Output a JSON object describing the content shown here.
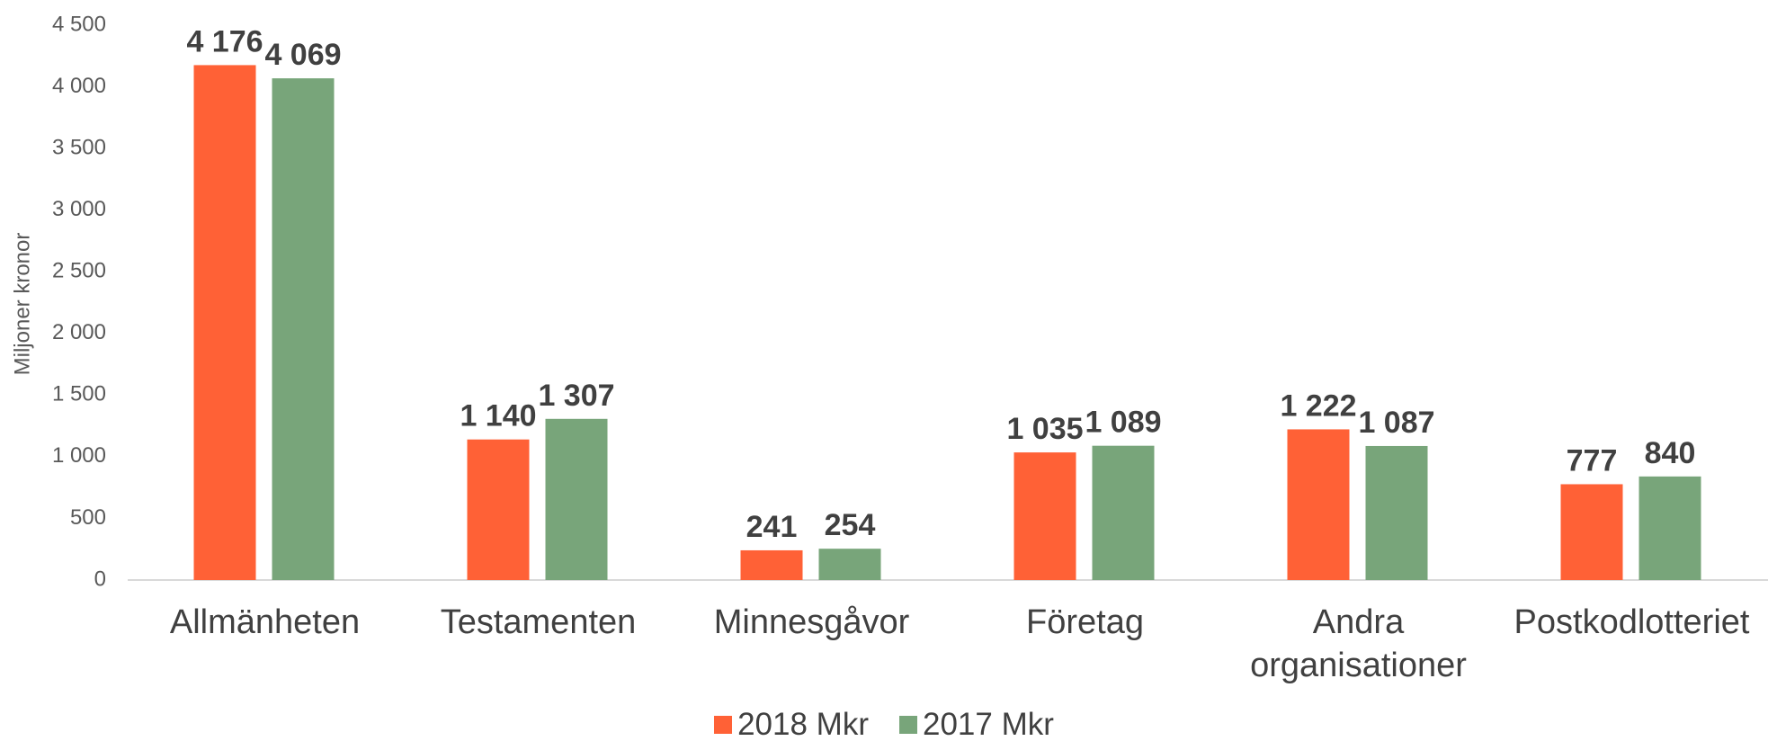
{
  "chart_data": {
    "type": "bar",
    "y_label": "Miljoner kronor",
    "categories": [
      "Allmänheten",
      "Testamenten",
      "Minnesgåvor",
      "Företag",
      "Andra organisationer",
      "Postkodlotteriet"
    ],
    "series": [
      {
        "name": "2018 Mkr",
        "color": "#ff6136",
        "values": [
          4176,
          1140,
          241,
          1035,
          1222,
          777
        ],
        "value_labels": [
          "4 176",
          "1 140",
          "241",
          "1 035",
          "1 222",
          "777"
        ]
      },
      {
        "name": "2017 Mkr",
        "color": "#78a57a",
        "values": [
          4069,
          1307,
          254,
          1089,
          1087,
          840
        ],
        "value_labels": [
          "4 069",
          "1 307",
          "254",
          "1 089",
          "1 087",
          "840"
        ]
      }
    ],
    "ylim": [
      0,
      4500
    ],
    "yticks": [
      0,
      500,
      {
        "value": 1000,
        "label": "1 000"
      },
      {
        "value": 1500,
        "label": "1 500"
      },
      {
        "value": 2000,
        "label": "2 000"
      },
      {
        "value": 2500,
        "label": "2 500"
      },
      {
        "value": 3000,
        "label": "3 000"
      },
      {
        "value": 3500,
        "label": "3 500"
      },
      {
        "value": 4000,
        "label": "4 000"
      },
      {
        "value": 4500,
        "label": "4 500"
      }
    ],
    "grid": false,
    "legend": "bottom"
  }
}
